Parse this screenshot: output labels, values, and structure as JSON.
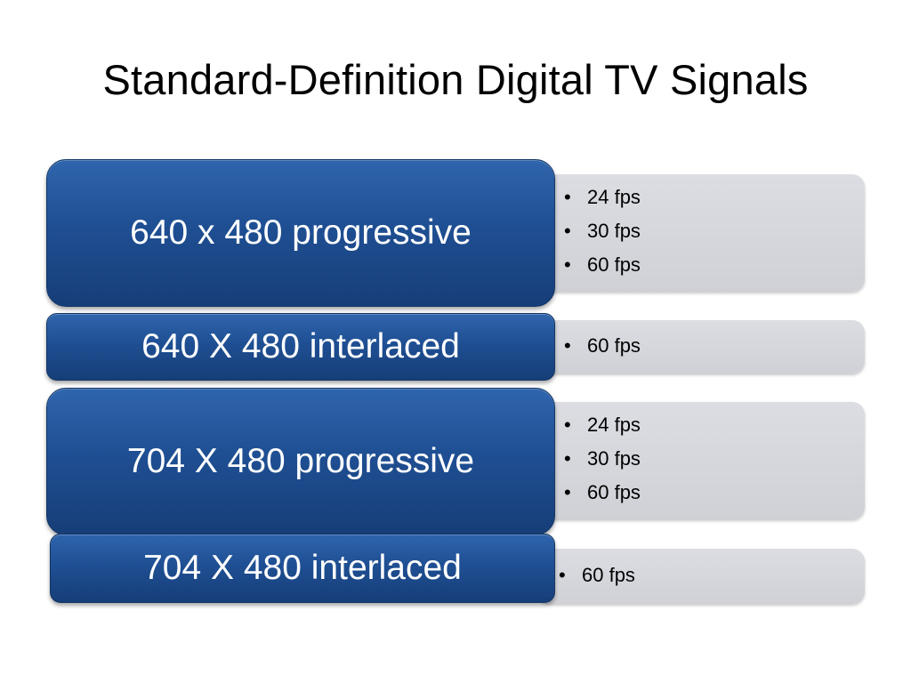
{
  "title": "Standard-Definition Digital TV Signals",
  "rows": [
    {
      "format": "640 x 480 progressive",
      "fps": [
        "24 fps",
        "30 fps",
        "60 fps"
      ]
    },
    {
      "format": "640 X 480 interlaced",
      "fps": [
        "60 fps"
      ]
    },
    {
      "format": "704 X 480 progressive",
      "fps": [
        "24 fps",
        "30 fps",
        "60 fps"
      ]
    },
    {
      "format": "704 X 480 interlaced",
      "fps": [
        "60 fps"
      ]
    }
  ],
  "colors": {
    "format_box": "#1f4f93",
    "detail_box": "#d5d7dc",
    "format_text": "#ffffff"
  },
  "icons": {
    "bullet": "bullet-icon"
  }
}
